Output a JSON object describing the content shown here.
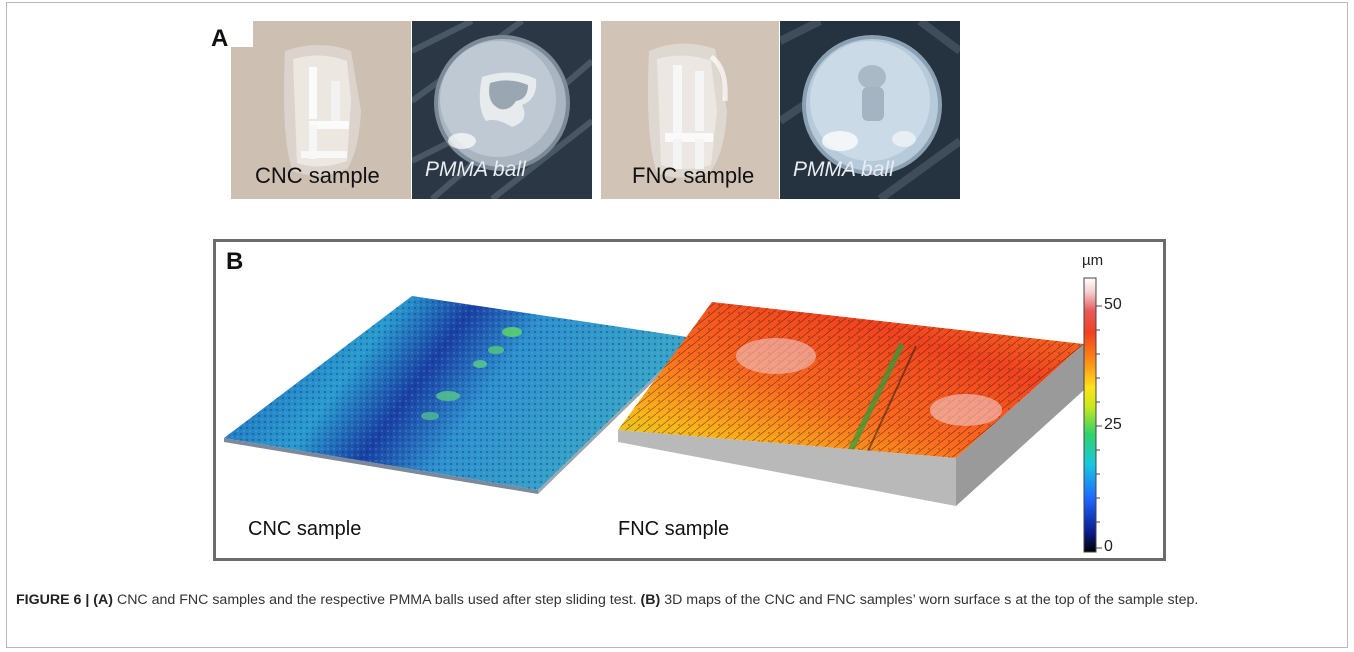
{
  "panel_a": {
    "letter": "A",
    "images": [
      {
        "kind": "sample-photo",
        "label": "CNC sample"
      },
      {
        "kind": "ball-photo",
        "label": "PMMA ball"
      },
      {
        "kind": "sample-photo",
        "label": "FNC sample"
      },
      {
        "kind": "ball-photo",
        "label": "PMMA ball"
      }
    ]
  },
  "panel_b": {
    "letter": "B",
    "surfaces": [
      {
        "label": "CNC sample",
        "colormap": "blue-green"
      },
      {
        "label": "FNC sample",
        "colormap": "orange-red"
      }
    ],
    "colorbar": {
      "unit": "µm",
      "ticks": [
        "50",
        "25",
        "0"
      ],
      "range": [
        0,
        57
      ],
      "colors": [
        "#000000",
        "#0a1a8c",
        "#1e6cff",
        "#18c8e0",
        "#2ed36a",
        "#c9e81d",
        "#ffe21a",
        "#ff8a14",
        "#f2401e",
        "#e85a5a",
        "#f5d0d0",
        "#ffffff"
      ]
    }
  },
  "caption": {
    "label": "FIGURE 6 | ",
    "a_tag": "(A)",
    "a_text": " CNC and FNC samples and the respective PMMA balls used after step sliding test. ",
    "b_tag": "(B)",
    "b_text": " 3D maps of the CNC and FNC samples’ worn surface s at the top of the sample step."
  }
}
